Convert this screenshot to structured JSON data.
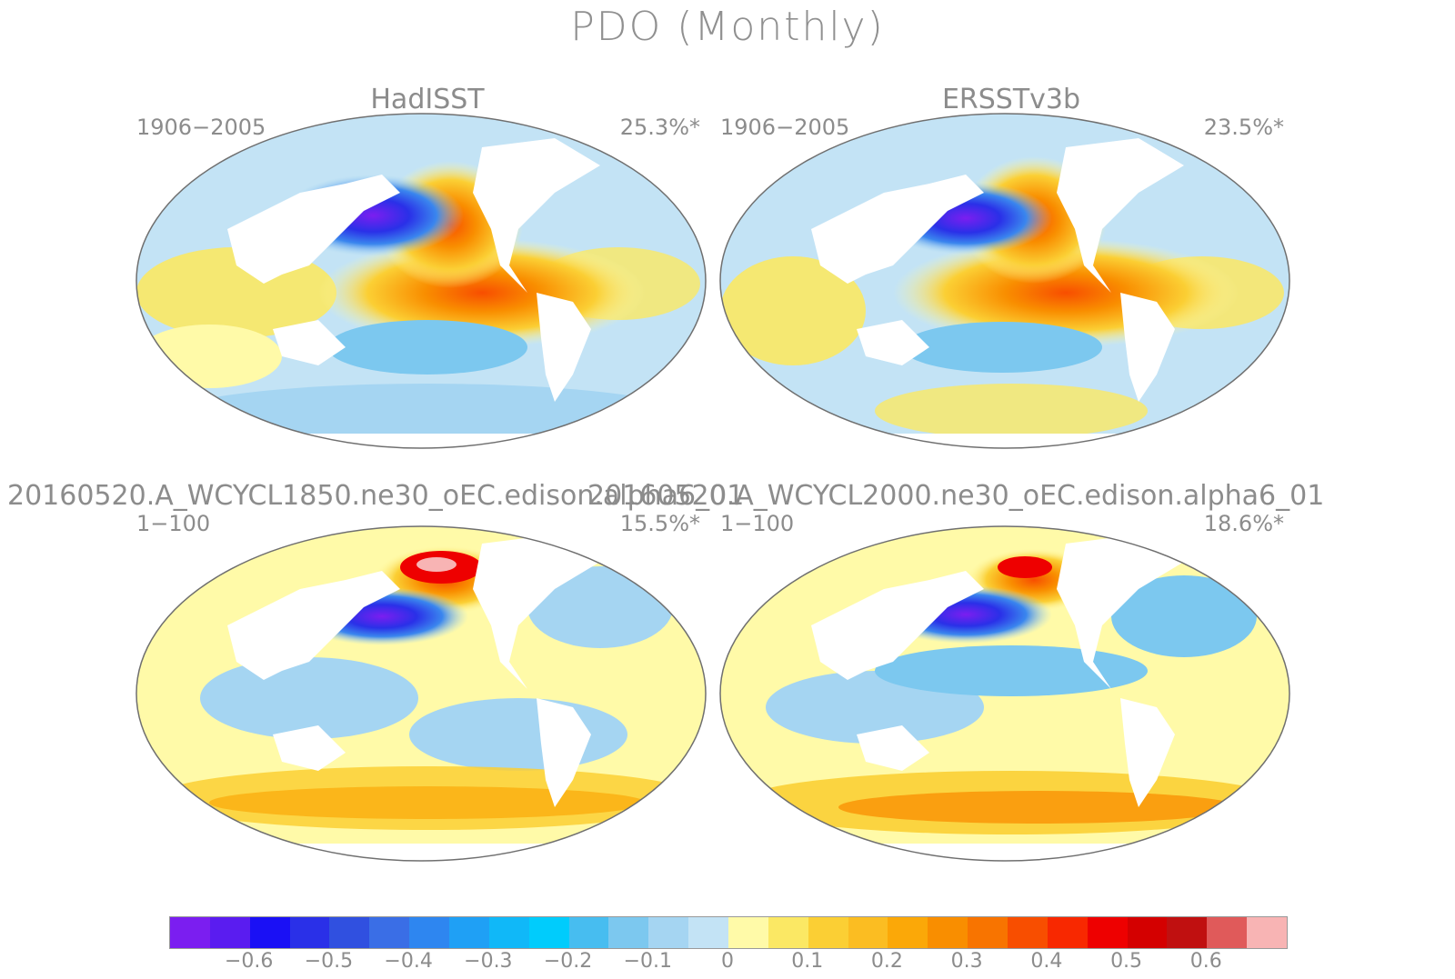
{
  "title": "PDO (Monthly)",
  "panels": [
    {
      "name": "HadISST",
      "period": "1906−2005",
      "pct": "25.3%*"
    },
    {
      "name": "ERSSTv3b",
      "period": "1906−2005",
      "pct": "23.5%*"
    },
    {
      "name": "20160520.A_WCYCL1850.ne30_oEC.edison.alpha6_01",
      "period": "1−100",
      "pct": "15.5%*"
    },
    {
      "name": "20160520.A_WCYCL2000.ne30_oEC.edison.alpha6_01",
      "period": "1−100",
      "pct": "18.6%*"
    }
  ],
  "colorbar": {
    "colors": [
      "#7b1ef0",
      "#5a1cf0",
      "#1a10f5",
      "#2a30e8",
      "#3050e0",
      "#3a6ee6",
      "#2e86f0",
      "#1fa0f5",
      "#10b8f8",
      "#00ccfc",
      "#47bdf0",
      "#7cc8ef",
      "#a5d5f2",
      "#c3e3f5",
      "#fffaa8",
      "#fbe864",
      "#fbcf34",
      "#fbbd22",
      "#fba808",
      "#f98e00",
      "#f87400",
      "#f84e00",
      "#f82800",
      "#ee0000",
      "#d40000",
      "#c01010",
      "#e05a5a",
      "#f8b4b4"
    ],
    "ticks": [
      "−0.6",
      "−0.5",
      "−0.4",
      "−0.3",
      "−0.2",
      "−0.1",
      "0",
      "0.1",
      "0.2",
      "0.3",
      "0.4",
      "0.5",
      "0.6"
    ]
  }
}
